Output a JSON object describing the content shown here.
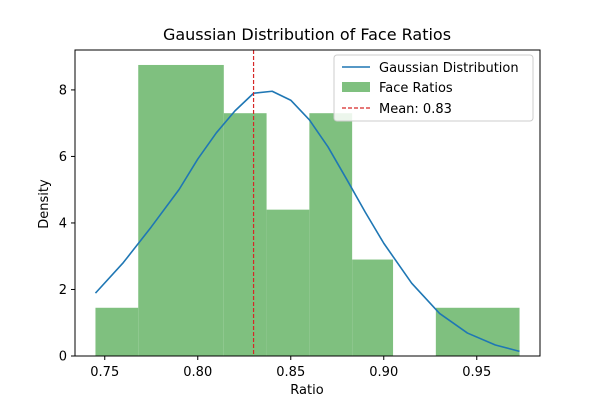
{
  "chart_data": {
    "type": "bar",
    "title": "Gaussian Distribution of Face Ratios",
    "xlabel": "Ratio",
    "ylabel": "Density",
    "xlim": [
      0.734,
      0.984
    ],
    "ylim": [
      0,
      9.2
    ],
    "xticks": [
      0.75,
      0.8,
      0.85,
      0.9,
      0.95
    ],
    "xtick_labels": [
      "0.75",
      "0.80",
      "0.85",
      "0.90",
      "0.95"
    ],
    "yticks": [
      0,
      2,
      4,
      6,
      8
    ],
    "ytick_labels": [
      "0",
      "2",
      "4",
      "6",
      "8"
    ],
    "grid": false,
    "legend_position": "upper-right",
    "histogram": {
      "name": "Face Ratios",
      "color": "#7fc07f",
      "bins": [
        {
          "x0": 0.745,
          "x1": 0.768,
          "density": 1.45
        },
        {
          "x0": 0.768,
          "x1": 0.814,
          "density": 8.75
        },
        {
          "x0": 0.814,
          "x1": 0.837,
          "density": 7.3
        },
        {
          "x0": 0.837,
          "x1": 0.86,
          "density": 4.4
        },
        {
          "x0": 0.86,
          "x1": 0.883,
          "density": 7.3
        },
        {
          "x0": 0.883,
          "x1": 0.905,
          "density": 2.9
        },
        {
          "x0": 0.905,
          "x1": 0.928,
          "density": 0
        },
        {
          "x0": 0.928,
          "x1": 0.973,
          "density": 1.45
        }
      ]
    },
    "series": [
      {
        "name": "Gaussian Distribution",
        "type": "line",
        "color": "#1f77b4",
        "x": [
          0.745,
          0.76,
          0.775,
          0.79,
          0.8,
          0.81,
          0.82,
          0.83,
          0.84,
          0.85,
          0.86,
          0.87,
          0.88,
          0.89,
          0.9,
          0.915,
          0.93,
          0.945,
          0.96,
          0.973
        ],
        "y": [
          1.89,
          2.81,
          3.88,
          5.01,
          5.92,
          6.71,
          7.37,
          7.9,
          7.96,
          7.69,
          7.1,
          6.29,
          5.32,
          4.33,
          3.39,
          2.19,
          1.28,
          0.69,
          0.33,
          0.14
        ]
      }
    ],
    "reference_line": {
      "name": "Mean: 0.83",
      "x": 0.83,
      "color": "#d62728"
    }
  }
}
